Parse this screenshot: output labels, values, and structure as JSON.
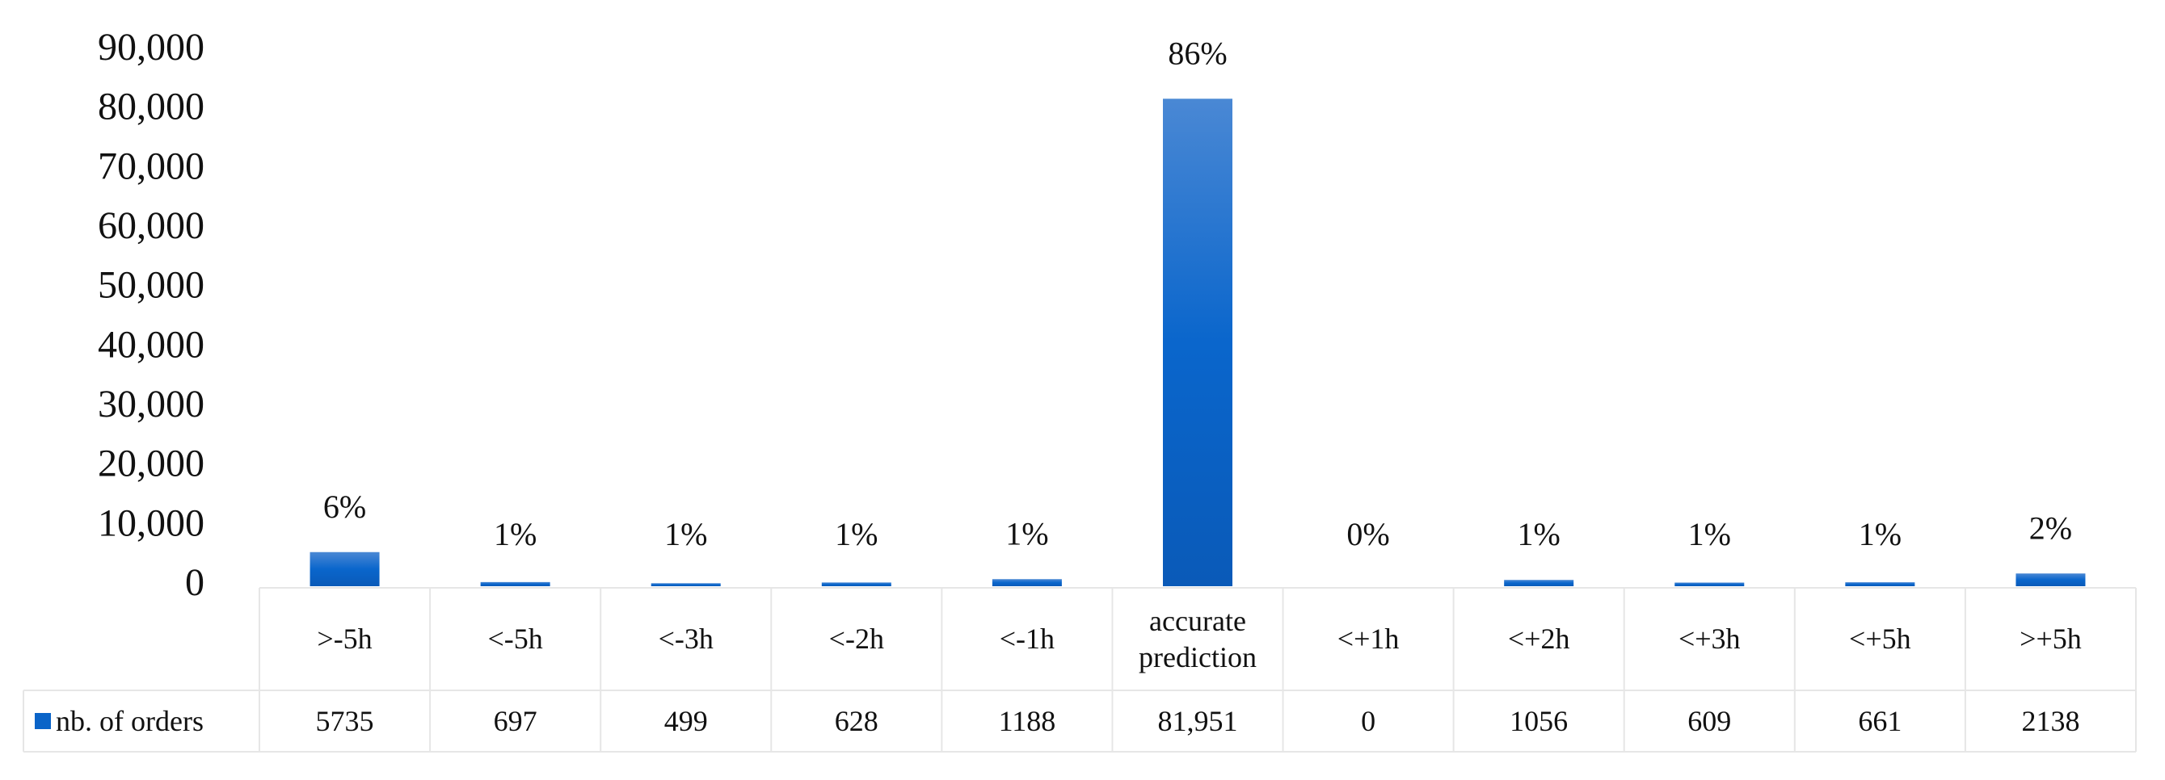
{
  "chart_data": {
    "type": "bar",
    "categories": [
      ">-5h",
      "<-5h",
      "<-3h",
      "<-2h",
      "<-1h",
      "accurate prediction",
      "<+1h",
      "<+2h",
      "<+3h",
      "<+5h",
      ">+5h"
    ],
    "series": [
      {
        "name": "nb. of orders",
        "color": "#0a64c8",
        "values": [
          5735,
          697,
          499,
          628,
          1188,
          81951,
          0,
          1056,
          609,
          661,
          2138
        ],
        "value_labels": [
          "5735",
          "697",
          "499",
          "628",
          "1188",
          "81,951",
          "0",
          "1056",
          "609",
          "661",
          "2138"
        ]
      }
    ],
    "percent_labels": [
      "6%",
      "1%",
      "1%",
      "1%",
      "1%",
      "86%",
      "0%",
      "1%",
      "1%",
      "1%",
      "2%"
    ],
    "ylim": [
      0,
      90000
    ],
    "yticks": [
      0,
      {
        "value": 10000,
        "label": "10,000"
      },
      {
        "value": 20000,
        "label": "20,000"
      },
      {
        "value": 30000,
        "label": "30,000"
      },
      {
        "value": 40000,
        "label": "40,000"
      },
      {
        "value": 50000,
        "label": "50,000"
      },
      {
        "value": 60000,
        "label": "60,000"
      },
      {
        "value": 70000,
        "label": "70,000"
      },
      {
        "value": 80000,
        "label": "80,000"
      },
      {
        "value": 90000,
        "label": "90,000"
      }
    ],
    "grid": false,
    "legend": "table"
  }
}
